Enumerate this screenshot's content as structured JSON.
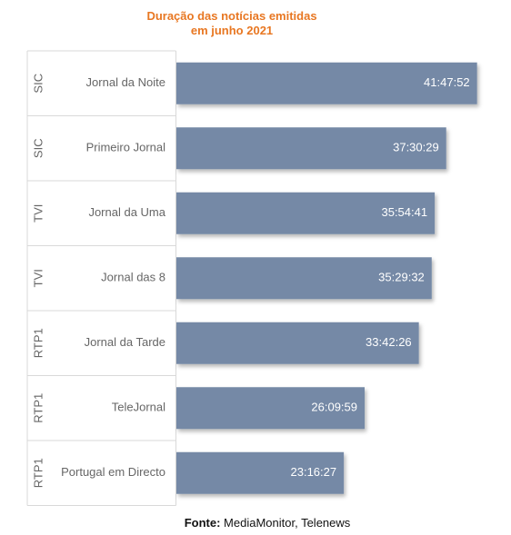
{
  "chart_data": {
    "type": "bar",
    "orientation": "horizontal",
    "title_lines": [
      "Duração das notícias emitidas",
      "em junho 2021"
    ],
    "categories": [
      {
        "group": "SIC",
        "program": "Jornal da Noite"
      },
      {
        "group": "SIC",
        "program": "Primeiro Jornal"
      },
      {
        "group": "TVI",
        "program": "Jornal da Uma"
      },
      {
        "group": "TVI",
        "program": "Jornal das 8"
      },
      {
        "group": "RTP1",
        "program": "Jornal da Tarde"
      },
      {
        "group": "RTP1",
        "program": "TeleJornal"
      },
      {
        "group": "RTP1",
        "program": "Portugal em Directo"
      }
    ],
    "values": [
      150472,
      135029,
      129281,
      127772,
      121346,
      94199,
      83787
    ],
    "value_labels": [
      "41:47:52",
      "37:30:29",
      "35:54:41",
      "35:29:32",
      "33:42:26",
      "26:09:59",
      "23:16:27"
    ],
    "xlim": [
      0,
      162000
    ],
    "grid": false,
    "legend": "none",
    "colors": {
      "bar": "#7489a6",
      "title": "#e87722",
      "value_label": "#ffffff",
      "axis_text": "#666666",
      "separator": "#d9d9d9"
    }
  },
  "footer": {
    "label": "Fonte:",
    "text": " MediaMonitor, Telenews"
  }
}
